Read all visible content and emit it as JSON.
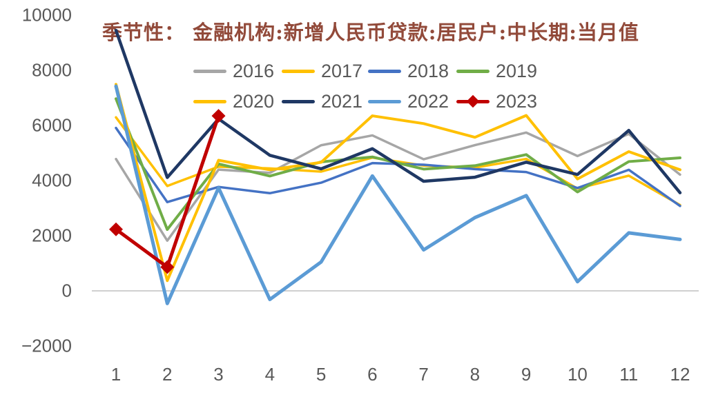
{
  "title": "季节性： 金融机构:新增人民币贷款:居民户:中长期:当月值",
  "styles": {
    "text_color": "#595959",
    "title_color": "#924A3A",
    "axis_line_color": "#CFCFCF",
    "background": "#FFFFFF"
  },
  "chart_data": {
    "type": "line",
    "title": "季节性： 金融机构:新增人民币贷款:居民户:中长期:当月值",
    "xlabel": "",
    "ylabel": "",
    "x_categories": [
      "1",
      "2",
      "3",
      "4",
      "5",
      "6",
      "7",
      "8",
      "9",
      "10",
      "11",
      "12"
    ],
    "y_axis": {
      "min": -2000,
      "max": 10000,
      "tick_step": 2000,
      "ticks": [
        {
          "label": "10000",
          "value": 10000
        },
        {
          "label": "8000",
          "value": 8000
        },
        {
          "label": "6000",
          "value": 6000
        },
        {
          "label": "4000",
          "value": 4000
        },
        {
          "label": "2000",
          "value": 2000
        },
        {
          "label": "0",
          "value": 0
        },
        {
          "label": "−2000",
          "value": -2000
        }
      ]
    },
    "grid": "none (only zero axis line shown)",
    "legend_position": "top-center, two rows of four",
    "series": [
      {
        "name": "2016",
        "color": "#A6A6A6",
        "line_width": 3.5,
        "marker": "none",
        "values": [
          4783,
          1820,
          4396,
          4280,
          5281,
          5639,
          4773,
          5286,
          5741,
          4891,
          5692,
          4217
        ]
      },
      {
        "name": "2017",
        "color": "#FFC000",
        "line_width": 3.5,
        "marker": "none",
        "values": [
          6293,
          3804,
          4503,
          4441,
          4326,
          4833,
          4544,
          4470,
          4786,
          3710,
          4178,
          3112
        ]
      },
      {
        "name": "2018",
        "color": "#4472C4",
        "line_width": 3.5,
        "marker": "none",
        "values": [
          5910,
          3220,
          3770,
          3543,
          3923,
          4634,
          4576,
          4415,
          4309,
          3730,
          4391,
          3079
        ]
      },
      {
        "name": "2019",
        "color": "#70AD47",
        "line_width": 4,
        "marker": "none",
        "values": [
          6969,
          2226,
          4605,
          4165,
          4677,
          4858,
          4417,
          4540,
          4943,
          3587,
          4689,
          4824
        ]
      },
      {
        "name": "2020",
        "color": "#FFC000",
        "line_width": 4,
        "marker": "none",
        "values": [
          7491,
          371,
          4738,
          4389,
          4662,
          6349,
          6067,
          5571,
          6362,
          4059,
          5049,
          4392
        ]
      },
      {
        "name": "2021",
        "color": "#1F3864",
        "line_width": 4.5,
        "marker": "none",
        "values": [
          9448,
          4113,
          6239,
          4918,
          4426,
          5156,
          3974,
          4123,
          4667,
          4221,
          5821,
          3558
        ]
      },
      {
        "name": "2022",
        "color": "#5B9BD5",
        "line_width": 5,
        "marker": "none",
        "values": [
          7424,
          -459,
          3735,
          -313,
          1047,
          4167,
          1486,
          2658,
          3456,
          332,
          2103,
          1865
        ]
      },
      {
        "name": "2023",
        "color": "#C00000",
        "line_width": 5,
        "marker": "diamond",
        "values": [
          2231,
          863,
          6348
        ]
      }
    ]
  }
}
